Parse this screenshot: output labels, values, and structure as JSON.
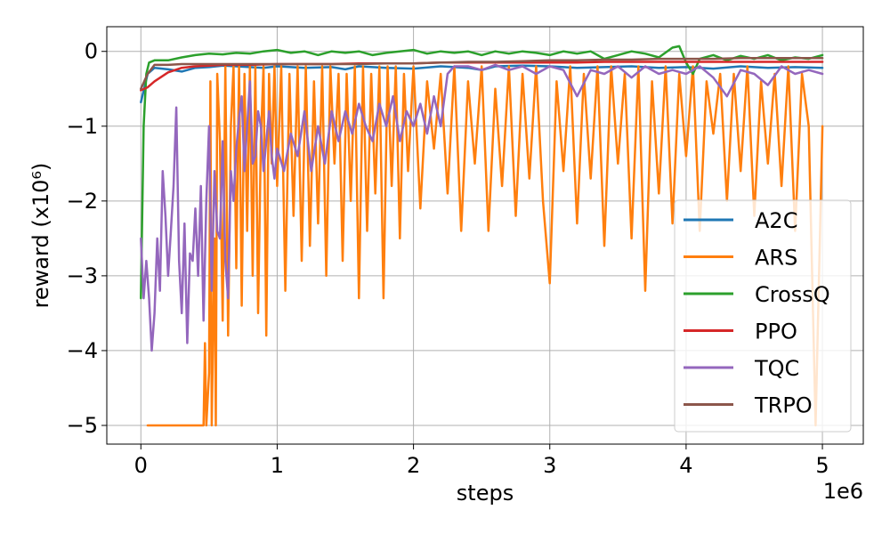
{
  "chart_data": {
    "type": "line",
    "title": "",
    "xlabel": "steps",
    "ylabel": "reward (x10⁶)",
    "x_offset_label": "1e6",
    "xlim": [
      -0.25,
      5.3
    ],
    "ylim": [
      -5.25,
      0.33
    ],
    "x_ticks": [
      0,
      1,
      2,
      3,
      4,
      5
    ],
    "x_tick_labels": [
      "0",
      "1",
      "2",
      "3",
      "4",
      "5"
    ],
    "y_ticks": [
      0,
      -1,
      -2,
      -3,
      -4,
      -5
    ],
    "y_tick_labels": [
      "0",
      "−1",
      "−2",
      "−3",
      "−4",
      "−5"
    ],
    "grid": true,
    "legend_position": "lower-right",
    "series": [
      {
        "name": "A2C",
        "color": "#1f77b4",
        "x": [
          0,
          0.05,
          0.1,
          0.2,
          0.3,
          0.4,
          0.5,
          0.6,
          0.7,
          0.8,
          0.9,
          1.0,
          1.2,
          1.4,
          1.5,
          1.6,
          1.8,
          2.0,
          2.2,
          2.4,
          2.5,
          2.6,
          2.8,
          3.0,
          3.2,
          3.4,
          3.6,
          3.8,
          4.0,
          4.2,
          4.4,
          4.6,
          4.8,
          5.0
        ],
        "y": [
          -0.68,
          -0.3,
          -0.22,
          -0.24,
          -0.27,
          -0.22,
          -0.21,
          -0.19,
          -0.2,
          -0.21,
          -0.22,
          -0.2,
          -0.22,
          -0.21,
          -0.24,
          -0.2,
          -0.22,
          -0.23,
          -0.2,
          -0.22,
          -0.25,
          -0.2,
          -0.19,
          -0.2,
          -0.22,
          -0.21,
          -0.2,
          -0.22,
          -0.21,
          -0.23,
          -0.2,
          -0.22,
          -0.21,
          -0.22
        ]
      },
      {
        "name": "ARS",
        "color": "#ff7f0e",
        "x": [
          0.05,
          0.1,
          0.2,
          0.3,
          0.4,
          0.46,
          0.47,
          0.48,
          0.5,
          0.51,
          0.52,
          0.54,
          0.55,
          0.56,
          0.58,
          0.6,
          0.62,
          0.64,
          0.66,
          0.68,
          0.7,
          0.72,
          0.74,
          0.76,
          0.78,
          0.8,
          0.82,
          0.84,
          0.86,
          0.88,
          0.9,
          0.92,
          0.94,
          0.96,
          0.98,
          1.0,
          1.03,
          1.06,
          1.09,
          1.12,
          1.15,
          1.18,
          1.21,
          1.24,
          1.27,
          1.3,
          1.33,
          1.36,
          1.39,
          1.42,
          1.45,
          1.48,
          1.51,
          1.54,
          1.57,
          1.6,
          1.63,
          1.66,
          1.69,
          1.72,
          1.75,
          1.78,
          1.81,
          1.84,
          1.87,
          1.9,
          1.93,
          1.96,
          2.0,
          2.05,
          2.1,
          2.15,
          2.2,
          2.25,
          2.3,
          2.35,
          2.4,
          2.45,
          2.5,
          2.55,
          2.6,
          2.65,
          2.7,
          2.75,
          2.8,
          2.85,
          2.9,
          2.95,
          3.0,
          3.05,
          3.1,
          3.15,
          3.2,
          3.25,
          3.3,
          3.35,
          3.4,
          3.45,
          3.5,
          3.55,
          3.6,
          3.65,
          3.7,
          3.75,
          3.8,
          3.85,
          3.9,
          3.95,
          4.0,
          4.05,
          4.1,
          4.15,
          4.2,
          4.25,
          4.3,
          4.35,
          4.4,
          4.45,
          4.5,
          4.55,
          4.6,
          4.65,
          4.7,
          4.75,
          4.8,
          4.85,
          4.9,
          4.95,
          5.0
        ],
        "y": [
          -5,
          -5,
          -5,
          -5,
          -5,
          -5,
          -3.9,
          -5,
          -4.3,
          -0.4,
          -5,
          -2.5,
          -5,
          -0.3,
          -1.2,
          -3.6,
          -0.2,
          -3.8,
          -1.0,
          -0.2,
          -2.9,
          -0.2,
          -3.4,
          -0.3,
          -2.4,
          -0.2,
          -3.0,
          -0.2,
          -3.5,
          -1.2,
          -0.2,
          -3.8,
          -0.3,
          -1.5,
          -0.2,
          -1.8,
          -0.2,
          -3.2,
          -0.3,
          -2.2,
          -0.2,
          -2.8,
          -0.2,
          -2.6,
          -0.4,
          -2.3,
          -0.2,
          -3.0,
          -0.2,
          -1.5,
          -0.3,
          -2.8,
          -0.3,
          -2.0,
          -0.2,
          -3.3,
          -0.2,
          -2.4,
          -0.3,
          -1.9,
          -0.2,
          -3.3,
          -0.2,
          -1.8,
          -0.2,
          -2.5,
          -0.3,
          -1.6,
          -0.2,
          -2.1,
          -0.4,
          -1.3,
          -0.3,
          -1.9,
          -0.2,
          -2.4,
          -0.4,
          -1.5,
          -0.2,
          -2.4,
          -0.5,
          -1.8,
          -0.2,
          -2.2,
          -0.3,
          -1.7,
          -0.2,
          -2.0,
          -3.1,
          -0.4,
          -1.6,
          -0.2,
          -2.3,
          -0.3,
          -1.7,
          -0.2,
          -2.6,
          -0.2,
          -1.5,
          -0.3,
          -2.5,
          -0.2,
          -3.2,
          -0.4,
          -1.9,
          -0.2,
          -2.3,
          -0.3,
          -1.4,
          -0.2,
          -2.4,
          -0.4,
          -1.1,
          -0.3,
          -2.0,
          -0.3,
          -1.6,
          -0.2,
          -2.2,
          -0.4,
          -1.5,
          -0.3,
          -1.8,
          -0.2,
          -2.4,
          -0.3,
          -1.0,
          -5.0,
          -1.0
        ]
      },
      {
        "name": "CrossQ",
        "color": "#2ca02c",
        "x": [
          0,
          0.02,
          0.04,
          0.06,
          0.1,
          0.2,
          0.3,
          0.4,
          0.5,
          0.6,
          0.7,
          0.8,
          0.9,
          1.0,
          1.1,
          1.2,
          1.3,
          1.4,
          1.5,
          1.6,
          1.7,
          1.8,
          1.9,
          2.0,
          2.1,
          2.2,
          2.3,
          2.4,
          2.5,
          2.6,
          2.7,
          2.8,
          2.9,
          3.0,
          3.1,
          3.2,
          3.3,
          3.4,
          3.5,
          3.6,
          3.7,
          3.8,
          3.9,
          3.95,
          4.0,
          4.05,
          4.1,
          4.2,
          4.3,
          4.4,
          4.5,
          4.6,
          4.7,
          4.8,
          4.9,
          5.0
        ],
        "y": [
          -3.3,
          -1.0,
          -0.3,
          -0.15,
          -0.12,
          -0.12,
          -0.08,
          -0.05,
          -0.03,
          -0.04,
          -0.02,
          -0.03,
          0.0,
          0.02,
          -0.02,
          0.0,
          -0.05,
          0.0,
          -0.02,
          0.0,
          -0.05,
          -0.02,
          0.0,
          0.02,
          -0.03,
          0.0,
          -0.02,
          0.0,
          -0.05,
          0.0,
          -0.03,
          0.0,
          -0.02,
          -0.05,
          0.0,
          -0.03,
          0.0,
          -0.1,
          -0.05,
          0.0,
          -0.03,
          -0.08,
          0.05,
          0.07,
          -0.15,
          -0.3,
          -0.1,
          -0.05,
          -0.12,
          -0.06,
          -0.1,
          -0.05,
          -0.12,
          -0.08,
          -0.1,
          -0.05
        ]
      },
      {
        "name": "PPO",
        "color": "#d62728",
        "x": [
          0,
          0.05,
          0.1,
          0.2,
          0.3,
          0.4,
          0.5,
          0.6,
          0.8,
          1.0,
          1.2,
          1.4,
          1.6,
          1.8,
          2.0,
          2.2,
          2.4,
          2.6,
          2.8,
          3.0,
          3.2,
          3.4,
          3.6,
          3.8,
          4.0,
          4.2,
          4.4,
          4.6,
          4.8,
          5.0
        ],
        "y": [
          -0.52,
          -0.48,
          -0.4,
          -0.28,
          -0.22,
          -0.2,
          -0.19,
          -0.18,
          -0.18,
          -0.17,
          -0.17,
          -0.17,
          -0.16,
          -0.16,
          -0.16,
          -0.15,
          -0.15,
          -0.15,
          -0.15,
          -0.15,
          -0.15,
          -0.14,
          -0.14,
          -0.14,
          -0.14,
          -0.14,
          -0.14,
          -0.14,
          -0.14,
          -0.14
        ]
      },
      {
        "name": "TQC",
        "color": "#9467bd",
        "x": [
          0,
          0.02,
          0.04,
          0.06,
          0.08,
          0.1,
          0.12,
          0.14,
          0.16,
          0.18,
          0.2,
          0.22,
          0.24,
          0.26,
          0.28,
          0.3,
          0.32,
          0.34,
          0.36,
          0.38,
          0.4,
          0.42,
          0.44,
          0.46,
          0.48,
          0.5,
          0.52,
          0.54,
          0.56,
          0.58,
          0.6,
          0.62,
          0.64,
          0.66,
          0.68,
          0.7,
          0.72,
          0.74,
          0.76,
          0.78,
          0.8,
          0.82,
          0.84,
          0.86,
          0.88,
          0.9,
          0.92,
          0.94,
          0.96,
          0.98,
          1.0,
          1.05,
          1.1,
          1.15,
          1.2,
          1.25,
          1.3,
          1.35,
          1.4,
          1.45,
          1.5,
          1.55,
          1.6,
          1.65,
          1.7,
          1.75,
          1.8,
          1.85,
          1.9,
          1.95,
          2.0,
          2.05,
          2.1,
          2.15,
          2.2,
          2.25,
          2.3,
          2.4,
          2.5,
          2.6,
          2.7,
          2.8,
          2.9,
          3.0,
          3.1,
          3.2,
          3.3,
          3.4,
          3.5,
          3.6,
          3.7,
          3.8,
          3.9,
          4.0,
          4.1,
          4.2,
          4.3,
          4.4,
          4.5,
          4.6,
          4.7,
          4.8,
          4.9,
          5.0
        ],
        "y": [
          -2.5,
          -3.3,
          -2.8,
          -3.3,
          -4.0,
          -3.5,
          -2.5,
          -3.2,
          -1.6,
          -2.2,
          -3.0,
          -2.4,
          -1.8,
          -0.75,
          -2.8,
          -3.5,
          -2.3,
          -3.9,
          -2.7,
          -2.8,
          -2.1,
          -3.0,
          -1.8,
          -3.6,
          -2.0,
          -1.0,
          -3.2,
          -1.6,
          -2.4,
          -2.5,
          -1.2,
          -2.8,
          -3.3,
          -1.6,
          -2.0,
          -1.3,
          -0.9,
          -0.6,
          -1.6,
          -1.0,
          -0.4,
          -1.5,
          -1.4,
          -0.8,
          -1.0,
          -1.6,
          -1.2,
          -0.8,
          -1.4,
          -1.7,
          -1.3,
          -1.6,
          -1.1,
          -1.4,
          -0.8,
          -1.6,
          -1.0,
          -1.5,
          -0.8,
          -1.2,
          -0.8,
          -1.1,
          -0.7,
          -1.0,
          -1.2,
          -0.7,
          -1.0,
          -0.6,
          -1.2,
          -0.8,
          -1.0,
          -0.7,
          -1.1,
          -0.6,
          -1.0,
          -0.3,
          -0.2,
          -0.2,
          -0.25,
          -0.18,
          -0.25,
          -0.2,
          -0.3,
          -0.2,
          -0.25,
          -0.6,
          -0.25,
          -0.3,
          -0.2,
          -0.35,
          -0.2,
          -0.3,
          -0.25,
          -0.3,
          -0.2,
          -0.35,
          -0.6,
          -0.25,
          -0.3,
          -0.45,
          -0.2,
          -0.3,
          -0.25,
          -0.3
        ]
      },
      {
        "name": "TRPO",
        "color": "#8c564b",
        "x": [
          0,
          0.05,
          0.1,
          0.2,
          0.3,
          0.4,
          0.6,
          0.8,
          1.0,
          1.2,
          1.4,
          1.6,
          1.8,
          2.0,
          2.2,
          2.4,
          2.6,
          2.8,
          3.0,
          3.2,
          3.4,
          3.6,
          3.8,
          4.0,
          4.2,
          4.4,
          4.6,
          4.8,
          5.0
        ],
        "y": [
          -0.5,
          -0.3,
          -0.18,
          -0.18,
          -0.17,
          -0.17,
          -0.17,
          -0.17,
          -0.17,
          -0.17,
          -0.17,
          -0.17,
          -0.16,
          -0.16,
          -0.15,
          -0.14,
          -0.14,
          -0.13,
          -0.12,
          -0.12,
          -0.11,
          -0.11,
          -0.1,
          -0.1,
          -0.1,
          -0.09,
          -0.09,
          -0.09,
          -0.09
        ]
      }
    ]
  }
}
